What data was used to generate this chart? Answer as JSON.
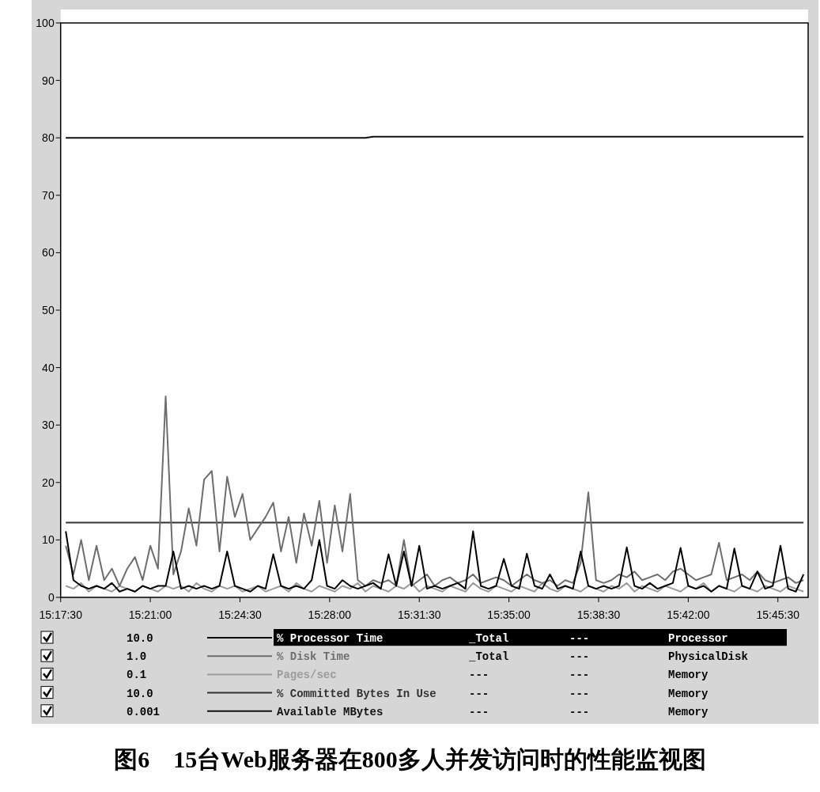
{
  "chart_data": {
    "type": "line",
    "title": "图6　15台Web服务器在800多人并发访问时的性能监视图",
    "x": [
      15.295,
      15.3,
      15.305,
      15.31,
      15.315,
      15.32,
      15.325,
      15.33,
      15.335,
      15.34,
      15.345,
      15.35,
      15.355,
      15.36,
      15.365,
      15.37,
      15.375,
      15.38,
      15.385,
      15.39,
      15.395,
      15.4,
      15.405,
      15.41,
      15.415,
      15.42,
      15.425,
      15.43,
      15.435,
      15.44,
      15.445,
      15.45,
      15.455,
      15.46,
      15.465,
      15.47,
      15.475,
      15.48,
      15.485,
      15.49,
      15.495,
      15.5,
      15.505,
      15.51,
      15.515,
      15.52,
      15.525,
      15.53,
      15.535,
      15.54,
      15.545,
      15.55,
      15.555,
      15.56,
      15.565,
      15.57,
      15.575,
      15.58,
      15.585,
      15.59,
      15.595,
      15.6,
      15.605,
      15.61,
      15.615,
      15.62,
      15.625,
      15.63,
      15.635,
      15.64,
      15.645,
      15.65,
      15.655,
      15.66,
      15.665,
      15.67,
      15.675,
      15.68,
      15.685,
      15.69,
      15.695,
      15.7,
      15.705,
      15.71,
      15.715,
      15.72,
      15.725,
      15.73,
      15.735,
      15.74,
      15.745,
      15.75,
      15.755,
      15.76,
      15.765,
      15.77,
      15.775
    ],
    "series": [
      {
        "name": "% Processor Time",
        "color": "#000000",
        "values": [
          11.5,
          3,
          2,
          1.5,
          2,
          1.5,
          2.5,
          1,
          1.5,
          1,
          2,
          1.5,
          2,
          2,
          8,
          1.5,
          2,
          1.5,
          2,
          1.5,
          2,
          8,
          2,
          1.5,
          1,
          2,
          1.5,
          7.5,
          2,
          1.5,
          2,
          1.5,
          3,
          10,
          2,
          1.5,
          3,
          2,
          1.5,
          2,
          2.5,
          1.5,
          7.5,
          2,
          8,
          2,
          9,
          1.5,
          2,
          1.5,
          2,
          2.5,
          1.5,
          11.5,
          2,
          1.5,
          2,
          6.7,
          2,
          1.5,
          7.6,
          2,
          1.5,
          4,
          1.5,
          2,
          1.5,
          8,
          2,
          1.5,
          2,
          1.5,
          2,
          8.7,
          2,
          1.5,
          2.5,
          1.5,
          2,
          2.5,
          8.6,
          2,
          1.5,
          2,
          1,
          2,
          1.5,
          8.5,
          2,
          1.5,
          4.5,
          1.5,
          2,
          9,
          1.5,
          1,
          4
        ]
      },
      {
        "name": "% Disk Time",
        "color": "#6e6e6e",
        "values": [
          9,
          4,
          10,
          3,
          9,
          3,
          5,
          2,
          5,
          7,
          3,
          9,
          5,
          35,
          4,
          8,
          15.5,
          9,
          20.5,
          22,
          8,
          21,
          14,
          18,
          10,
          12,
          14,
          16.5,
          8,
          14,
          6,
          14.6,
          9,
          16.8,
          6,
          16,
          8,
          18,
          3,
          2,
          3,
          2.5,
          3,
          2,
          10,
          2,
          3,
          4,
          2,
          3,
          3.5,
          2.5,
          3,
          4,
          2.5,
          3,
          3.5,
          3,
          2,
          3,
          4,
          3,
          2.5,
          3,
          2,
          3,
          2.5,
          6,
          18.3,
          3,
          2.5,
          3,
          4,
          3.5,
          4.5,
          3,
          3.5,
          4,
          3,
          4.5,
          5,
          4,
          3,
          3.5,
          4,
          9.5,
          3,
          3.5,
          4,
          3,
          4.5,
          3,
          2.5,
          3,
          3.5,
          2.5,
          3
        ]
      },
      {
        "name": "Pages/sec",
        "color": "#9c9c9c",
        "values": [
          2,
          1.5,
          2.5,
          1,
          2,
          1.5,
          1,
          2,
          1.5,
          1,
          2,
          1.5,
          1,
          2,
          1.5,
          2,
          1,
          2.5,
          1.5,
          1,
          2,
          1.5,
          2,
          1,
          1.5,
          2,
          1,
          1.5,
          2,
          1,
          2.5,
          1.5,
          1,
          2,
          1.5,
          1,
          2,
          1.5,
          2.5,
          1,
          2,
          1.5,
          1,
          2,
          1.5,
          2.5,
          1,
          2,
          1.5,
          1,
          2,
          1.5,
          1,
          2.5,
          1.5,
          1,
          2,
          1.5,
          1,
          2,
          1.5,
          1,
          2.5,
          1.5,
          1,
          2,
          1.5,
          1,
          2,
          1.5,
          1,
          2,
          1.5,
          2.5,
          1,
          2,
          1.5,
          1,
          2,
          1.5,
          1,
          2,
          1.5,
          2.5,
          1,
          2,
          1.5,
          1,
          2,
          1.5,
          1,
          2,
          1.5,
          1,
          2,
          1.5,
          1
        ]
      },
      {
        "name": "% Committed Bytes In Use",
        "color": "#333333",
        "values": [
          13,
          13,
          13,
          13,
          13,
          13,
          13,
          13,
          13,
          13,
          13,
          13,
          13,
          13,
          13,
          13,
          13,
          13,
          13,
          13,
          13,
          13,
          13,
          13,
          13,
          13,
          13,
          13,
          13,
          13,
          13,
          13,
          13,
          13,
          13,
          13,
          13,
          13,
          13,
          13,
          13,
          13,
          13,
          13,
          13,
          13,
          13,
          13,
          13,
          13,
          13,
          13,
          13,
          13,
          13,
          13,
          13,
          13,
          13,
          13,
          13,
          13,
          13,
          13,
          13,
          13,
          13,
          13,
          13,
          13,
          13,
          13,
          13,
          13,
          13,
          13,
          13,
          13,
          13,
          13,
          13,
          13,
          13,
          13,
          13,
          13,
          13,
          13,
          13,
          13,
          13,
          13,
          13,
          13,
          13,
          13,
          13
        ]
      },
      {
        "name": "Available MBytes",
        "color": "#111111",
        "values": [
          80,
          80,
          80,
          80,
          80,
          80,
          80,
          80,
          80,
          80,
          80,
          80,
          80,
          80,
          80,
          80,
          80,
          80,
          80,
          80,
          80,
          80,
          80,
          80,
          80,
          80,
          80,
          80,
          80,
          80,
          80,
          80,
          80,
          80,
          80,
          80,
          80,
          80,
          80,
          80,
          80.2,
          80.2,
          80.2,
          80.2,
          80.2,
          80.2,
          80.2,
          80.2,
          80.2,
          80.2,
          80.2,
          80.2,
          80.2,
          80.2,
          80.2,
          80.2,
          80.2,
          80.2,
          80.2,
          80.2,
          80.2,
          80.2,
          80.2,
          80.2,
          80.2,
          80.2,
          80.2,
          80.2,
          80.2,
          80.2,
          80.2,
          80.2,
          80.2,
          80.2,
          80.2,
          80.2,
          80.2,
          80.2,
          80.2,
          80.2,
          80.2,
          80.2,
          80.2,
          80.2,
          80.2,
          80.2,
          80.2,
          80.2,
          80.2,
          80.2,
          80.2,
          80.2,
          80.2,
          80.2,
          80.2,
          80.2,
          80.2
        ]
      }
    ],
    "xlim": [
      15.291667,
      15.778
    ],
    "xticks": [
      {
        "value": 15.291667,
        "label": "15:17:30"
      },
      {
        "value": 15.35,
        "label": "15:21:00"
      },
      {
        "value": 15.408333,
        "label": "15:24:30"
      },
      {
        "value": 15.466667,
        "label": "15:28:00"
      },
      {
        "value": 15.525,
        "label": "15:31:30"
      },
      {
        "value": 15.583333,
        "label": "15:35:00"
      },
      {
        "value": 15.641667,
        "label": "15:38:30"
      },
      {
        "value": 15.7,
        "label": "15:42:00"
      },
      {
        "value": 15.758333,
        "label": "15:45:30"
      }
    ],
    "ylim": [
      0,
      100
    ],
    "yticks": [
      0,
      10,
      20,
      30,
      40,
      50,
      60,
      70,
      80,
      90,
      100
    ],
    "legend": "bottom",
    "marker": "none",
    "line_style": "solid",
    "annotations": [
      "10.0",
      "_Total",
      "---",
      "Processor",
      "1.0",
      "_Total",
      "---",
      "PhysicalDisk",
      "0.1",
      "---",
      "---",
      "Memory",
      "10.0",
      "---",
      "---",
      "Memory",
      "0.001",
      "---",
      "---",
      "Memory"
    ]
  }
}
